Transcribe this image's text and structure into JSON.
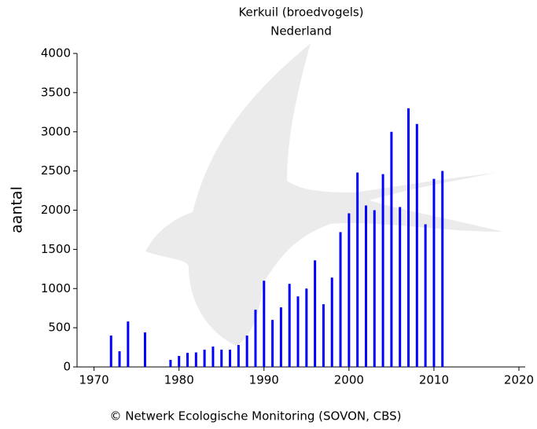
{
  "chart_data": {
    "type": "bar",
    "title": "Kerkuil (broedvogels)",
    "subtitle": "Nederland",
    "y_label": "aantal",
    "footer": "© Netwerk Ecologische Monitoring (SOVON, CBS)",
    "color": "#0000ff",
    "x": [
      1972,
      1973,
      1974,
      1976,
      1979,
      1980,
      1981,
      1982,
      1983,
      1984,
      1985,
      1986,
      1987,
      1988,
      1989,
      1990,
      1991,
      1992,
      1993,
      1994,
      1995,
      1996,
      1997,
      1998,
      1999,
      2000,
      2001,
      2002,
      2003,
      2004,
      2005,
      2006,
      2007,
      2008,
      2009,
      2010,
      2011
    ],
    "values": [
      400,
      200,
      580,
      440,
      90,
      140,
      180,
      185,
      220,
      260,
      220,
      220,
      280,
      400,
      730,
      1100,
      600,
      760,
      1060,
      900,
      1000,
      1360,
      800,
      1140,
      1720,
      1960,
      2480,
      2060,
      2000,
      2460,
      3000,
      2040,
      3300,
      3100,
      1820,
      2400,
      2500
    ],
    "xlim": [
      1968,
      2020
    ],
    "xticks": [
      1970,
      1980,
      1990,
      2000,
      2010,
      2020
    ],
    "ylim": [
      0,
      4000
    ],
    "yticks": [
      0,
      500,
      1000,
      1500,
      2000,
      2500,
      3000,
      3500,
      4000
    ]
  }
}
